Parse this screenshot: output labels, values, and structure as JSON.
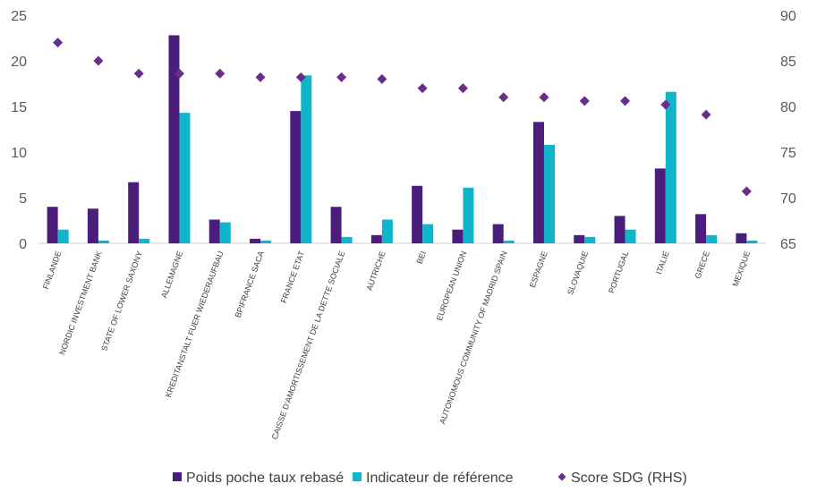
{
  "chart_data": {
    "type": "bar",
    "categories": [
      "FINLANDE",
      "NORDIC INVESTMENT BANK",
      "STATE OF LOWER SAXONY",
      "ALLEMAGNE",
      "KREDITANSTALT FUER WIEDERAUFBAU",
      "BPIFRANCE SACA",
      "FRANCE ETAT",
      "CAISSE D'AMORTISSEMENT DE LA DETTE SOCIALE",
      "AUTRICHE",
      "BEI",
      "EUROPEAN UNION",
      "AUTONOMOUS COMMUNITY OF MADRID SPAIN",
      "ESPAGNE",
      "SLOVAQUIE",
      "PORTUGAL",
      "ITALIE",
      "GRECE",
      "MEXIQUE"
    ],
    "series": [
      {
        "name": "Poids poche taux rebasé",
        "type": "bar",
        "axis": "left",
        "color": "#4B1D7D",
        "values": [
          4.0,
          3.8,
          6.7,
          22.8,
          2.6,
          0.5,
          14.5,
          4.0,
          0.9,
          6.3,
          1.5,
          2.1,
          13.3,
          0.9,
          3.0,
          8.2,
          3.2,
          1.1
        ]
      },
      {
        "name": "Indicateur de référence",
        "type": "bar",
        "axis": "left",
        "color": "#0FB5CB",
        "values": [
          1.5,
          0.3,
          0.5,
          14.3,
          2.3,
          0.3,
          18.4,
          0.7,
          2.6,
          2.1,
          6.1,
          0.3,
          10.8,
          0.7,
          1.5,
          16.6,
          0.9,
          0.3
        ]
      },
      {
        "name": "Score SDG (RHS)",
        "type": "scatter",
        "axis": "right",
        "marker": "diamond",
        "color": "#6A2D8C",
        "values": [
          87.0,
          85.0,
          83.6,
          83.6,
          83.6,
          83.2,
          83.2,
          83.2,
          83.0,
          82.0,
          82.0,
          81.0,
          81.0,
          80.6,
          80.6,
          80.2,
          79.1,
          70.7
        ]
      }
    ],
    "ylim": [
      0,
      25
    ],
    "y_ticks": [
      0,
      5,
      10,
      15,
      20,
      25
    ],
    "y2lim": [
      65,
      90
    ],
    "y2_ticks": [
      65,
      70,
      75,
      80,
      85,
      90
    ],
    "xlabel": "",
    "ylabel": "",
    "grid": false,
    "legend_position": "bottom"
  }
}
